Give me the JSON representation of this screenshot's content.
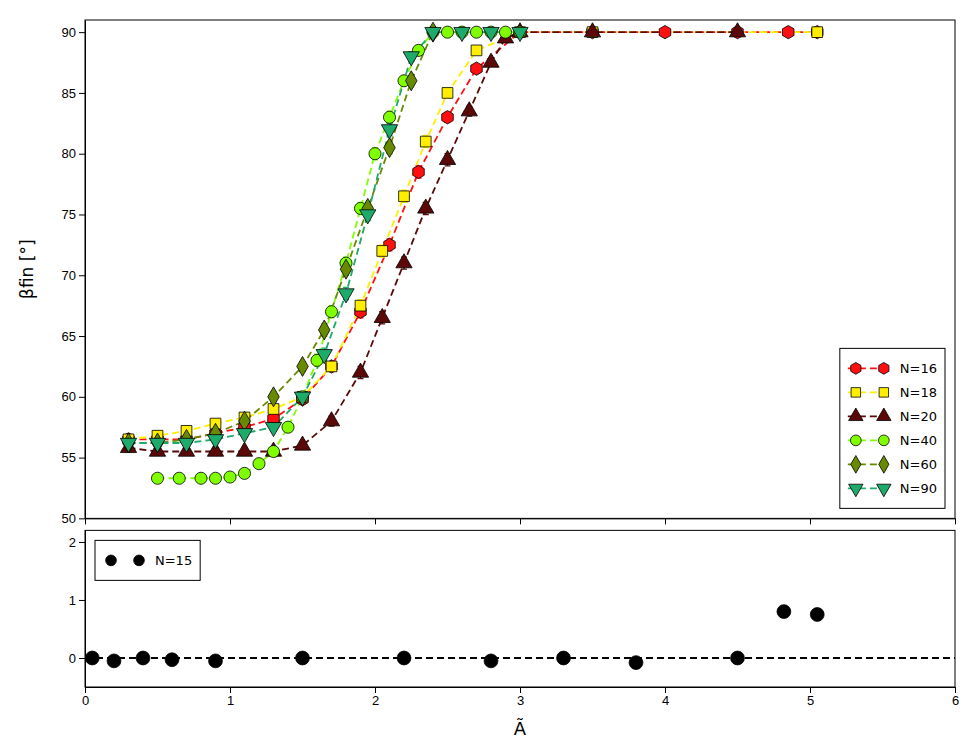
{
  "chart_data": [
    {
      "type": "line",
      "ylabel": "βfin [°]",
      "xlim": [
        0,
        6
      ],
      "ylim": [
        50,
        91
      ],
      "xticks": [
        0,
        1,
        2,
        3,
        4,
        5,
        6
      ],
      "yticks": [
        50,
        55,
        60,
        65,
        70,
        75,
        80,
        85,
        90
      ],
      "tick_labels": "y",
      "grid": false,
      "legend": "lower right",
      "series": [
        {
          "name": "N=16",
          "color": "#ff1010",
          "marker": "hexagon",
          "line_style": "dashed",
          "x": [
            0.3,
            0.5,
            0.7,
            0.9,
            1.1,
            1.3,
            1.5,
            1.7,
            1.9,
            2.1,
            2.3,
            2.5,
            2.7,
            3.0,
            3.5,
            4.0,
            4.5,
            4.85,
            5.05
          ],
          "values": [
            56.5,
            56.5,
            56.5,
            57.0,
            57.5,
            58.2,
            59.8,
            62.5,
            67.0,
            72.5,
            78.5,
            83.0,
            87.0,
            90.0,
            90.0,
            90.0,
            90.0,
            90.0,
            90.0
          ],
          "yerr": [
            0.4,
            0.4,
            0.4,
            0.4,
            0.4,
            0.4,
            0.4,
            0.4,
            0.5,
            0.5,
            0.5,
            0.4,
            0.3,
            0.2,
            0.2,
            0.2,
            0.2,
            0.2,
            0.2
          ]
        },
        {
          "name": "N=18",
          "color": "#ffee00",
          "marker": "square",
          "line_style": "dashed",
          "x": [
            0.3,
            0.5,
            0.7,
            0.9,
            1.1,
            1.3,
            1.5,
            1.7,
            1.9,
            2.05,
            2.2,
            2.35,
            2.5,
            2.7,
            3.0,
            3.5,
            5.05
          ],
          "values": [
            56.5,
            56.8,
            57.2,
            57.8,
            58.3,
            59.0,
            60.0,
            62.5,
            67.5,
            72.0,
            76.5,
            81.0,
            85.0,
            88.5,
            90.0,
            90.0,
            90.0
          ],
          "yerr": [
            0.4,
            0.4,
            0.4,
            0.4,
            0.4,
            0.4,
            0.4,
            0.4,
            0.5,
            0.5,
            0.5,
            0.5,
            0.4,
            0.3,
            0.2,
            0.2,
            0.2
          ]
        },
        {
          "name": "N=20",
          "color": "#5a0808",
          "marker": "triangle-up",
          "line_style": "dashed",
          "x": [
            0.3,
            0.5,
            0.7,
            0.9,
            1.1,
            1.3,
            1.5,
            1.7,
            1.9,
            2.05,
            2.2,
            2.35,
            2.5,
            2.65,
            2.8,
            2.9,
            3.0,
            3.5,
            4.5
          ],
          "values": [
            55.8,
            55.5,
            55.5,
            55.5,
            55.5,
            55.5,
            56.0,
            58.0,
            62.0,
            66.5,
            71.0,
            75.5,
            79.5,
            83.5,
            87.5,
            89.5,
            90.0,
            90.0,
            90.0
          ],
          "yerr": [
            0.3,
            0.3,
            0.3,
            0.3,
            0.3,
            0.3,
            0.3,
            0.4,
            0.5,
            0.5,
            0.5,
            0.5,
            0.5,
            0.4,
            0.3,
            0.2,
            0.2,
            0.2,
            0.2
          ]
        },
        {
          "name": "N=40",
          "color": "#80ff00",
          "marker": "circle",
          "line_style": "dashed",
          "x": [
            0.5,
            0.65,
            0.8,
            0.9,
            1.0,
            1.1,
            1.2,
            1.3,
            1.4,
            1.5,
            1.6,
            1.7,
            1.8,
            1.9,
            2.0,
            2.1,
            2.2,
            2.3,
            2.4,
            2.5,
            2.6,
            2.7,
            2.8,
            2.9,
            3.0
          ],
          "values": [
            53.3,
            53.3,
            53.3,
            53.3,
            53.4,
            53.7,
            54.5,
            55.5,
            57.5,
            60.0,
            63.0,
            67.0,
            71.0,
            75.5,
            80.0,
            83.0,
            86.0,
            88.5,
            90.0,
            90.0,
            90.0,
            90.0,
            90.0,
            90.0,
            90.0
          ],
          "yerr": [
            0.3,
            0.3,
            0.3,
            0.3,
            0.3,
            0.3,
            0.3,
            0.4,
            0.4,
            0.4,
            0.5,
            0.5,
            0.5,
            0.5,
            0.5,
            0.5,
            0.4,
            0.3,
            0.2,
            0.2,
            0.2,
            0.2,
            0.2,
            0.2,
            0.2
          ]
        },
        {
          "name": "N=60",
          "color": "#688a00",
          "marker": "diamond",
          "line_style": "dashed",
          "x": [
            0.3,
            0.5,
            0.7,
            0.9,
            1.1,
            1.3,
            1.5,
            1.65,
            1.8,
            1.95,
            2.1,
            2.25,
            2.4
          ],
          "values": [
            56.2,
            56.2,
            56.5,
            57.0,
            58.0,
            60.0,
            62.5,
            65.5,
            70.5,
            75.5,
            80.5,
            86.0,
            90.0
          ],
          "yerr": [
            0.3,
            0.3,
            0.3,
            0.3,
            0.4,
            0.4,
            0.4,
            0.5,
            0.5,
            0.5,
            0.5,
            0.4,
            0.2
          ]
        },
        {
          "name": "N=90",
          "color": "#1eaa6a",
          "marker": "triangle-down",
          "line_style": "dashed",
          "x": [
            0.3,
            0.5,
            0.7,
            0.9,
            1.1,
            1.3,
            1.5,
            1.65,
            1.8,
            1.95,
            2.1,
            2.25,
            2.4,
            2.6,
            2.8,
            3.0
          ],
          "values": [
            56.2,
            56.2,
            56.2,
            56.5,
            57.0,
            57.5,
            60.0,
            63.5,
            68.5,
            75.0,
            82.0,
            88.0,
            90.0,
            90.0,
            90.0,
            90.0
          ],
          "yerr": [
            0.3,
            0.3,
            0.3,
            0.3,
            0.3,
            0.3,
            0.4,
            0.5,
            0.5,
            0.5,
            0.5,
            0.4,
            0.2,
            0.2,
            0.2,
            0.2
          ]
        }
      ]
    },
    {
      "type": "scatter",
      "xlabel": "Ã",
      "xlim": [
        0,
        6
      ],
      "ylim": [
        -0.5,
        2.2
      ],
      "xticks": [
        0,
        1,
        2,
        3,
        4,
        5,
        6
      ],
      "yticks": [
        0,
        1,
        2
      ],
      "grid": false,
      "legend": "upper left",
      "series": [
        {
          "type": "line",
          "color": "#000000",
          "line_style": "dashed",
          "x": [
            0,
            6
          ],
          "values": [
            0,
            0
          ]
        },
        {
          "name": "N=15",
          "type": "scatter",
          "color": "#000000",
          "marker": "circle",
          "x": [
            0.05,
            0.2,
            0.4,
            0.6,
            0.9,
            1.5,
            2.2,
            2.8,
            3.3,
            3.8,
            4.5,
            4.82,
            5.05
          ],
          "values": [
            0.0,
            -0.05,
            0.0,
            -0.03,
            -0.05,
            0.0,
            0.0,
            -0.05,
            0.0,
            -0.08,
            0.0,
            0.8,
            0.75
          ],
          "yerr": [
            0.04,
            0.04,
            0.04,
            0.04,
            0.04,
            0.04,
            0.04,
            0.04,
            0.04,
            0.04,
            0.04,
            0.1,
            0.1
          ]
        }
      ]
    }
  ]
}
